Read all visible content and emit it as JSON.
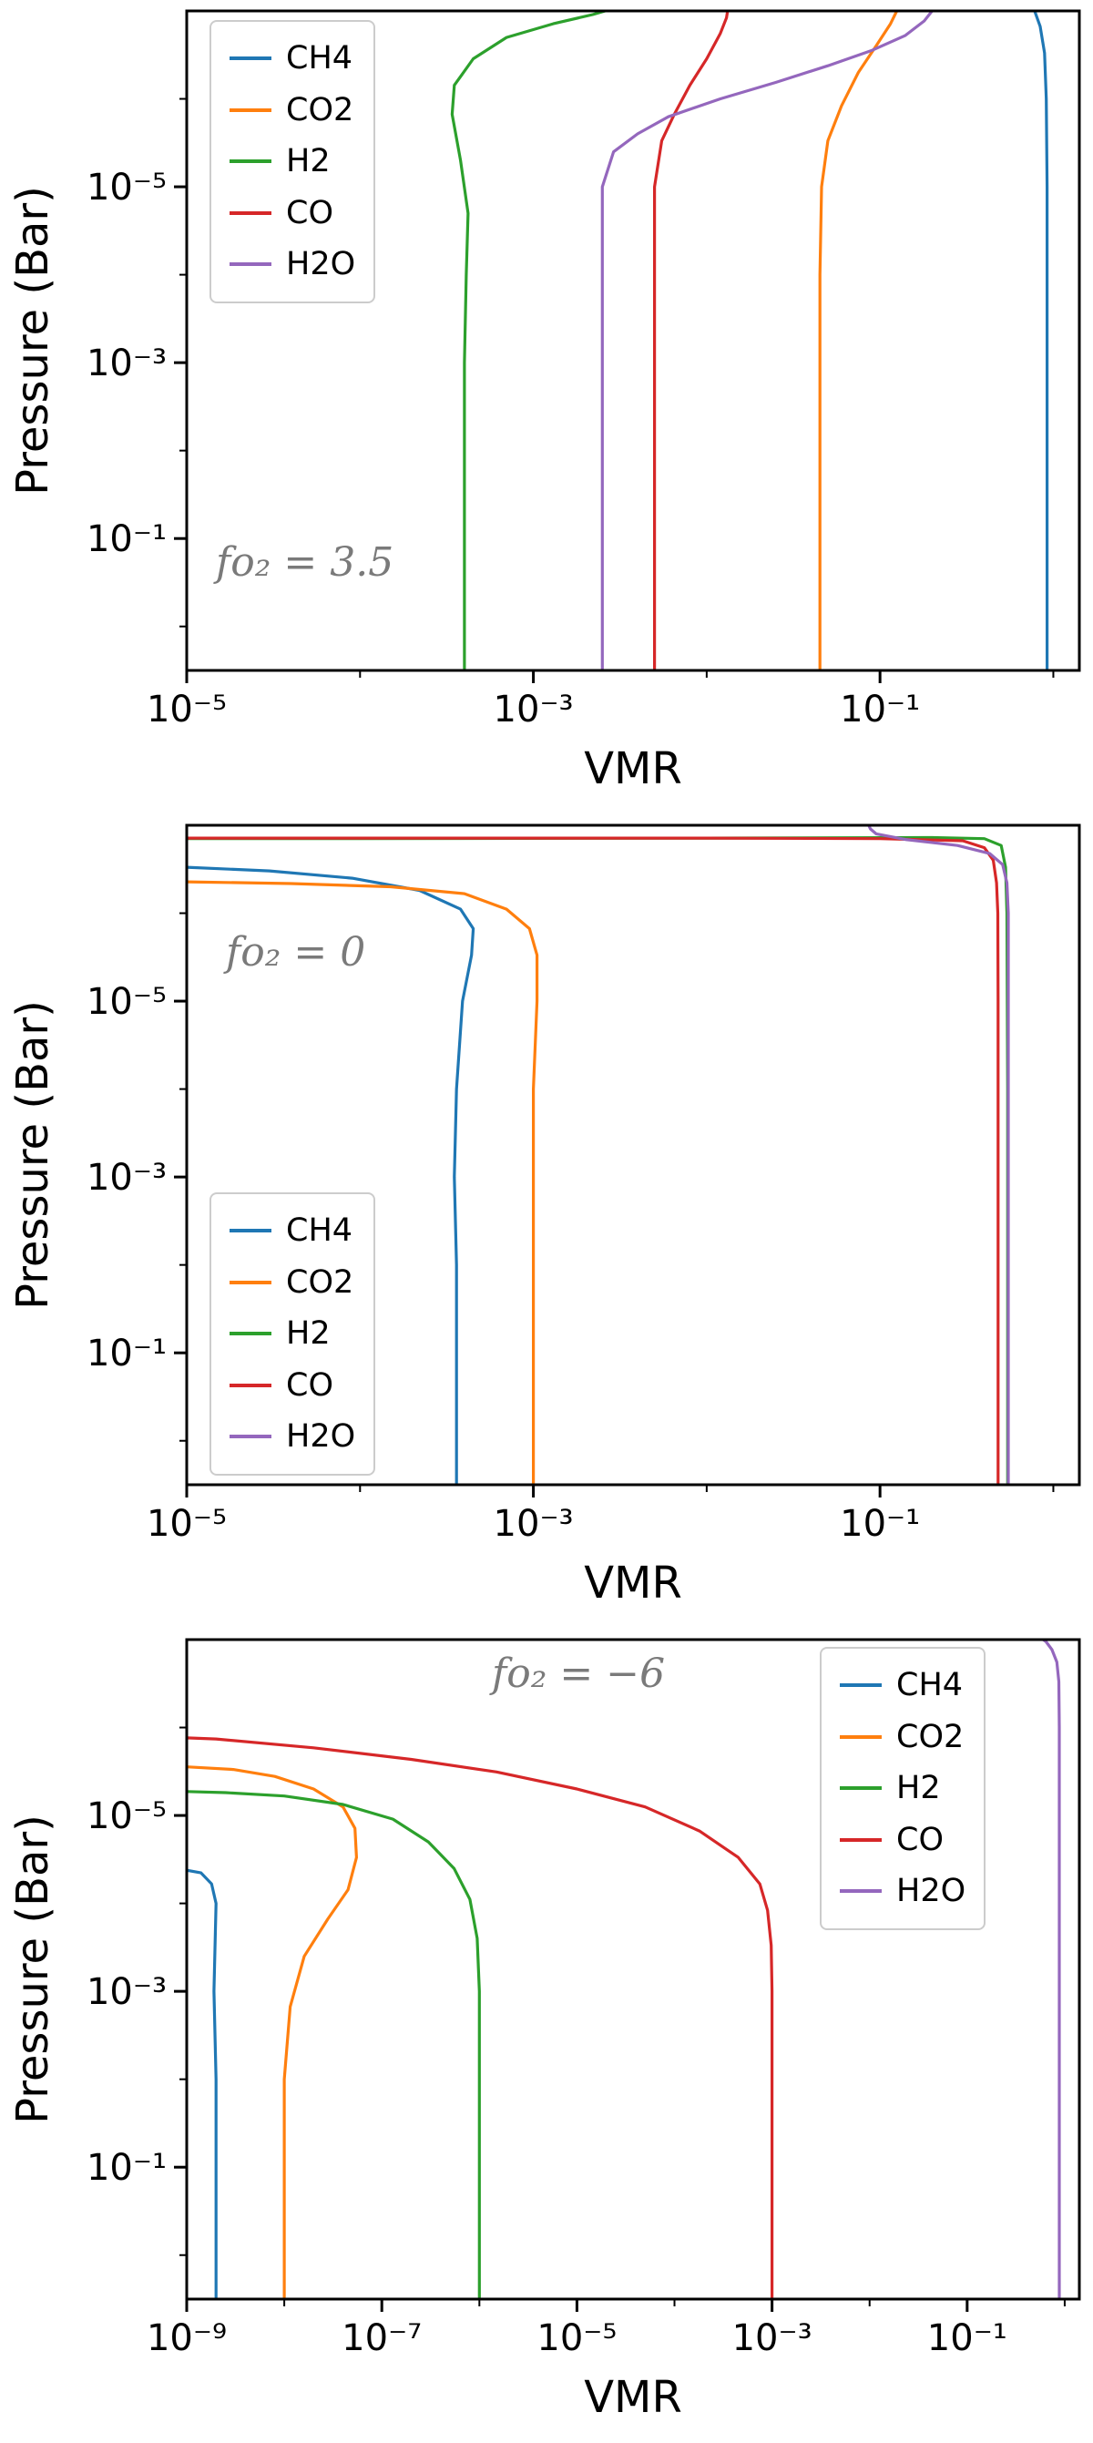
{
  "figure": {
    "xlabel": "VMR",
    "ylabel": "Pressure (Bar)",
    "background": "#ffffff",
    "annotation_color": "#7a7a7a"
  },
  "chart_data": [
    {
      "type": "line",
      "annotation": "fo₂ = 3.5",
      "annotation_color": "#7a7a7a",
      "xlabel": "VMR",
      "ylabel": "Pressure (Bar)",
      "x_scale": "log",
      "y_scale": "log-inverted",
      "xlim_log10": [
        -5,
        0.15
      ],
      "ylim_log10_top_bottom": [
        -7,
        0.5
      ],
      "xticks": [
        {
          "log10": -5,
          "label": "10⁻⁵"
        },
        {
          "log10": -3,
          "label": "10⁻³"
        },
        {
          "log10": -1,
          "label": "10⁻¹"
        }
      ],
      "xminor_log10": [
        -4,
        -2,
        0
      ],
      "yticks": [
        {
          "log10": -5,
          "label": "10⁻⁵"
        },
        {
          "log10": -3,
          "label": "10⁻³"
        },
        {
          "log10": -1,
          "label": "10⁻¹"
        }
      ],
      "yminor_log10": [
        -6,
        -4,
        -2,
        0
      ],
      "legend_position": "top-left",
      "series": [
        {
          "name": "CH4",
          "color": "#1f77b4",
          "points": [
            [
              0.92,
              3
            ],
            [
              0.92,
              0.3
            ],
            [
              0.92,
              0.01
            ],
            [
              0.92,
              0.0001
            ],
            [
              0.92,
              1e-05
            ],
            [
              0.91,
              1e-06
            ],
            [
              0.89,
              3e-07
            ],
            [
              0.84,
              1.5e-07
            ],
            [
              0.78,
              1e-07
            ]
          ]
        },
        {
          "name": "CO2",
          "color": "#ff7f0e",
          "points": [
            [
              0.045,
              3
            ],
            [
              0.045,
              0.3
            ],
            [
              0.045,
              0.01
            ],
            [
              0.045,
              0.0001
            ],
            [
              0.046,
              1e-05
            ],
            [
              0.05,
              3e-06
            ],
            [
              0.06,
              1.2e-06
            ],
            [
              0.075,
              5e-07
            ],
            [
              0.095,
              2.5e-07
            ],
            [
              0.115,
              1.4e-07
            ],
            [
              0.125,
              1e-07
            ]
          ]
        },
        {
          "name": "H2",
          "color": "#2ca02c",
          "points": [
            [
              0.0004,
              3
            ],
            [
              0.0004,
              0.3
            ],
            [
              0.0004,
              0.01
            ],
            [
              0.0004,
              0.001
            ],
            [
              0.00041,
              0.0001
            ],
            [
              0.00042,
              2e-05
            ],
            [
              0.00038,
              5e-06
            ],
            [
              0.00034,
              1.5e-06
            ],
            [
              0.00035,
              7e-07
            ],
            [
              0.00045,
              3.5e-07
            ],
            [
              0.0007,
              2e-07
            ],
            [
              0.0013,
              1.4e-07
            ],
            [
              0.0022,
              1.1e-07
            ],
            [
              0.0026,
              1e-07
            ]
          ]
        },
        {
          "name": "CO",
          "color": "#d62728",
          "points": [
            [
              0.005,
              3
            ],
            [
              0.005,
              0.3
            ],
            [
              0.005,
              0.01
            ],
            [
              0.005,
              0.0001
            ],
            [
              0.005,
              1e-05
            ],
            [
              0.0055,
              3e-06
            ],
            [
              0.0065,
              1.5e-06
            ],
            [
              0.008,
              7e-07
            ],
            [
              0.01,
              3.5e-07
            ],
            [
              0.012,
              1.8e-07
            ],
            [
              0.013,
              1.2e-07
            ],
            [
              0.0132,
              1e-07
            ]
          ]
        },
        {
          "name": "H2O",
          "color": "#9467bd",
          "points": [
            [
              0.0025,
              3
            ],
            [
              0.0025,
              0.3
            ],
            [
              0.0025,
              0.01
            ],
            [
              0.0025,
              0.0001
            ],
            [
              0.0025,
              1e-05
            ],
            [
              0.0029,
              4e-06
            ],
            [
              0.004,
              2.5e-06
            ],
            [
              0.006,
              1.6e-06
            ],
            [
              0.012,
              1e-06
            ],
            [
              0.025,
              6.5e-07
            ],
            [
              0.05,
              4.2e-07
            ],
            [
              0.09,
              2.8e-07
            ],
            [
              0.14,
              1.9e-07
            ],
            [
              0.18,
              1.3e-07
            ],
            [
              0.2,
              1e-07
            ]
          ]
        }
      ]
    },
    {
      "type": "line",
      "annotation": "fo₂ = 0",
      "annotation_color": "#7a7a7a",
      "xlabel": "VMR",
      "ylabel": "Pressure (Bar)",
      "x_scale": "log",
      "y_scale": "log-inverted",
      "xlim_log10": [
        -5,
        0.15
      ],
      "ylim_log10_top_bottom": [
        -7,
        0.5
      ],
      "xticks": [
        {
          "log10": -5,
          "label": "10⁻⁵"
        },
        {
          "log10": -3,
          "label": "10⁻³"
        },
        {
          "log10": -1,
          "label": "10⁻¹"
        }
      ],
      "xminor_log10": [
        -4,
        -2,
        0
      ],
      "yticks": [
        {
          "log10": -5,
          "label": "10⁻⁵"
        },
        {
          "log10": -3,
          "label": "10⁻³"
        },
        {
          "log10": -1,
          "label": "10⁻¹"
        }
      ],
      "yminor_log10": [
        -6,
        -4,
        -2,
        0
      ],
      "legend_position": "bottom-left",
      "series": [
        {
          "name": "CH4",
          "color": "#1f77b4",
          "points": [
            [
              0.00036,
              3
            ],
            [
              0.00036,
              0.3
            ],
            [
              0.00036,
              0.01
            ],
            [
              0.00035,
              0.001
            ],
            [
              0.00036,
              0.0001
            ],
            [
              0.00039,
              1e-05
            ],
            [
              0.00044,
              3e-06
            ],
            [
              0.00045,
              1.5e-06
            ],
            [
              0.00038,
              9e-07
            ],
            [
              0.00022,
              5.5e-07
            ],
            [
              9e-05,
              4e-07
            ],
            [
              3e-05,
              3.3e-07
            ],
            [
              1e-05,
              3e-07
            ],
            [
              8e-06,
              3e-07
            ]
          ]
        },
        {
          "name": "CO2",
          "color": "#ff7f0e",
          "points": [
            [
              0.001,
              3
            ],
            [
              0.001,
              0.3
            ],
            [
              0.001,
              0.01
            ],
            [
              0.001,
              0.0001
            ],
            [
              0.00105,
              1e-05
            ],
            [
              0.00105,
              3e-06
            ],
            [
              0.00095,
              1.5e-06
            ],
            [
              0.0007,
              9e-07
            ],
            [
              0.0004,
              6e-07
            ],
            [
              0.00015,
              5e-07
            ],
            [
              4e-05,
              4.6e-07
            ],
            [
              1e-05,
              4.4e-07
            ],
            [
              8e-06,
              4.4e-07
            ]
          ]
        },
        {
          "name": "H2",
          "color": "#2ca02c",
          "points": [
            [
              8e-06,
              1.42e-07
            ],
            [
              0.0001,
              1.42e-07
            ],
            [
              0.01,
              1.4e-07
            ],
            [
              0.2,
              1.38e-07
            ],
            [
              0.4,
              1.42e-07
            ],
            [
              0.5,
              1.7e-07
            ],
            [
              0.53,
              3e-07
            ],
            [
              0.54,
              1e-06
            ],
            [
              0.545,
              0.0001
            ],
            [
              0.545,
              3
            ]
          ]
        },
        {
          "name": "CO",
          "color": "#d62728",
          "points": [
            [
              0.48,
              3
            ],
            [
              0.48,
              0.3
            ],
            [
              0.48,
              0.01
            ],
            [
              0.48,
              0.0001
            ],
            [
              0.48,
              1e-05
            ],
            [
              0.478,
              1e-06
            ],
            [
              0.47,
              4.5e-07
            ],
            [
              0.45,
              2.5e-07
            ],
            [
              0.4,
              1.8e-07
            ],
            [
              0.3,
              1.5e-07
            ],
            [
              0.1,
              1.42e-07
            ],
            [
              0.01,
              1.4e-07
            ],
            [
              0.001,
              1.4e-07
            ],
            [
              0.0001,
              1.4e-07
            ],
            [
              8e-06,
              1.4e-07
            ]
          ]
        },
        {
          "name": "H2O",
          "color": "#9467bd",
          "points": [
            [
              0.55,
              3
            ],
            [
              0.55,
              0.3
            ],
            [
              0.55,
              0.01
            ],
            [
              0.55,
              0.0001
            ],
            [
              0.55,
              1e-06
            ],
            [
              0.54,
              4.5e-07
            ],
            [
              0.51,
              2.8e-07
            ],
            [
              0.43,
              2.1e-07
            ],
            [
              0.28,
              1.7e-07
            ],
            [
              0.14,
              1.45e-07
            ],
            [
              0.095,
              1.25e-07
            ],
            [
              0.088,
              1.1e-07
            ],
            [
              0.086,
              1e-07
            ]
          ]
        }
      ]
    },
    {
      "type": "line",
      "annotation": "fo₂ = −6",
      "annotation_color": "#7a7a7a",
      "xlabel": "VMR",
      "ylabel": "Pressure (Bar)",
      "x_scale": "log",
      "y_scale": "log-inverted",
      "xlim_log10": [
        -9,
        0.15
      ],
      "ylim_log10_top_bottom": [
        -7,
        0.5
      ],
      "xticks": [
        {
          "log10": -9,
          "label": "10⁻⁹"
        },
        {
          "log10": -7,
          "label": "10⁻⁷"
        },
        {
          "log10": -5,
          "label": "10⁻⁵"
        },
        {
          "log10": -3,
          "label": "10⁻³"
        },
        {
          "log10": -1,
          "label": "10⁻¹"
        }
      ],
      "xminor_log10": [
        -8,
        -6,
        -4,
        -2,
        0
      ],
      "yticks": [
        {
          "log10": -5,
          "label": "10⁻⁵"
        },
        {
          "log10": -3,
          "label": "10⁻³"
        },
        {
          "log10": -1,
          "label": "10⁻¹"
        }
      ],
      "yminor_log10": [
        -6,
        -4,
        -2,
        0
      ],
      "legend_position": "top-right",
      "series": [
        {
          "name": "CH4",
          "color": "#1f77b4",
          "points": [
            [
              2e-09,
              3
            ],
            [
              2e-09,
              0.3
            ],
            [
              2e-09,
              0.01
            ],
            [
              1.9e-09,
              0.001
            ],
            [
              2e-09,
              0.0001
            ],
            [
              1.8e-09,
              6e-05
            ],
            [
              1.4e-09,
              4.5e-05
            ],
            [
              1e-09,
              4.2e-05
            ],
            [
              8e-10,
              4.2e-05
            ]
          ]
        },
        {
          "name": "CO2",
          "color": "#ff7f0e",
          "points": [
            [
              1e-08,
              3
            ],
            [
              1e-08,
              0.3
            ],
            [
              1e-08,
              0.01
            ],
            [
              1.15e-08,
              0.0015
            ],
            [
              1.6e-08,
              0.0004
            ],
            [
              2.8e-08,
              0.00015
            ],
            [
              4.5e-08,
              7e-05
            ],
            [
              5.5e-08,
              3e-05
            ],
            [
              5.3e-08,
              1.4e-05
            ],
            [
              4e-08,
              8e-06
            ],
            [
              2e-08,
              5e-06
            ],
            [
              8e-09,
              3.6e-06
            ],
            [
              3e-09,
              3e-06
            ],
            [
              1e-09,
              2.8e-06
            ],
            [
              8e-10,
              2.8e-06
            ]
          ]
        },
        {
          "name": "H2",
          "color": "#2ca02c",
          "points": [
            [
              1e-06,
              3
            ],
            [
              1e-06,
              0.3
            ],
            [
              1e-06,
              0.01
            ],
            [
              1e-06,
              0.001
            ],
            [
              9.5e-07,
              0.00025
            ],
            [
              8e-07,
              9e-05
            ],
            [
              5.5e-07,
              4e-05
            ],
            [
              3e-07,
              2e-05
            ],
            [
              1.3e-07,
              1.1e-05
            ],
            [
              4e-08,
              7.5e-06
            ],
            [
              1e-08,
              6e-06
            ],
            [
              2.5e-09,
              5.5e-06
            ],
            [
              8e-10,
              5.3e-06
            ]
          ]
        },
        {
          "name": "CO",
          "color": "#d62728",
          "points": [
            [
              0.001,
              3
            ],
            [
              0.001,
              0.3
            ],
            [
              0.001,
              0.01
            ],
            [
              0.001,
              0.001
            ],
            [
              0.00098,
              0.0003
            ],
            [
              0.0009,
              0.00012
            ],
            [
              0.00075,
              6e-05
            ],
            [
              0.00045,
              3e-05
            ],
            [
              0.00018,
              1.5e-05
            ],
            [
              5e-05,
              8e-06
            ],
            [
              1e-05,
              5e-06
            ],
            [
              1.5e-06,
              3.2e-06
            ],
            [
              2e-07,
              2.3e-06
            ],
            [
              2e-08,
              1.7e-06
            ],
            [
              2e-09,
              1.35e-06
            ],
            [
              8e-10,
              1.3e-06
            ]
          ]
        },
        {
          "name": "H2O",
          "color": "#9467bd",
          "points": [
            [
              0.88,
              3
            ],
            [
              0.88,
              0.3
            ],
            [
              0.88,
              0.01
            ],
            [
              0.88,
              0.0001
            ],
            [
              0.88,
              1e-06
            ],
            [
              0.87,
              3e-07
            ],
            [
              0.83,
              1.8e-07
            ],
            [
              0.74,
              1.3e-07
            ],
            [
              0.64,
              1.05e-07
            ],
            [
              0.6,
              1e-07
            ]
          ]
        }
      ]
    }
  ]
}
